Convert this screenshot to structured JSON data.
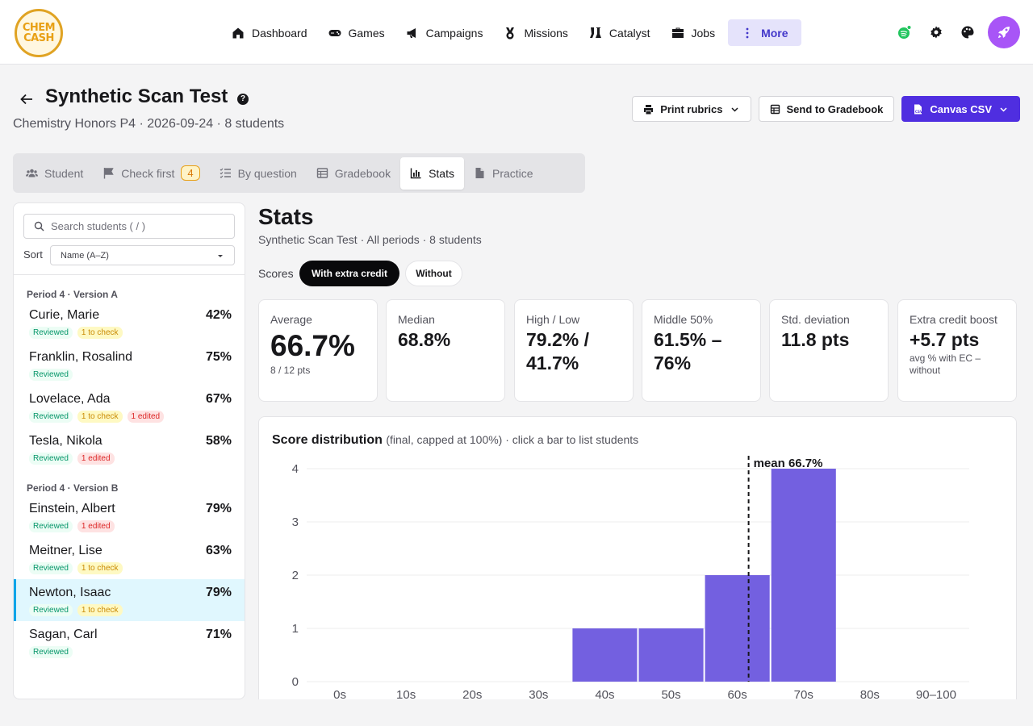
{
  "app": {
    "logo": [
      "CHEM",
      "CASH"
    ],
    "nav": [
      {
        "label": "Dashboard",
        "icon": "home-icon"
      },
      {
        "label": "Games",
        "icon": "gamepad-icon"
      },
      {
        "label": "Campaigns",
        "icon": "megaphone-icon"
      },
      {
        "label": "Missions",
        "icon": "medal-icon"
      },
      {
        "label": "Catalyst",
        "icon": "flask-icon"
      },
      {
        "label": "Jobs",
        "icon": "briefcase-icon"
      },
      {
        "label": "More",
        "icon": "dots-vertical-icon"
      }
    ],
    "top_icons": [
      "spotify-icon",
      "gear-icon",
      "palette-icon",
      "rocket-icon"
    ],
    "accent": "#4f2ee0",
    "rocket_color": "#a855f7"
  },
  "header": {
    "title": "Synthetic Scan Test",
    "subtitle": "Chemistry Honors P4 · 2026-09-24 · 8 students",
    "buttons": {
      "print": "Print rubrics",
      "gradebook": "Send to Gradebook",
      "canvas": "Canvas CSV"
    }
  },
  "tabs": [
    {
      "label": "Student",
      "icon": "users-icon"
    },
    {
      "label": "Check first",
      "icon": "flag-icon",
      "badge": "4"
    },
    {
      "label": "By question",
      "icon": "list-check-icon"
    },
    {
      "label": "Gradebook",
      "icon": "table-icon"
    },
    {
      "label": "Stats",
      "icon": "bar-chart-icon",
      "active": true
    },
    {
      "label": "Practice",
      "icon": "file-icon"
    }
  ],
  "sidebar": {
    "search_placeholder": "Search students ( / )",
    "sort_label": "Sort",
    "sort_value": "Name (A–Z)",
    "groups": [
      {
        "label": "Period 4 · Version A",
        "students": [
          {
            "name": "Curie, Marie",
            "pct": "42%",
            "chips": [
              [
                "Reviewed",
                "rev"
              ],
              [
                "1 to check",
                "chk"
              ]
            ]
          },
          {
            "name": "Franklin, Rosalind",
            "pct": "75%",
            "chips": [
              [
                "Reviewed",
                "rev"
              ]
            ]
          },
          {
            "name": "Lovelace, Ada",
            "pct": "67%",
            "chips": [
              [
                "Reviewed",
                "rev"
              ],
              [
                "1 to check",
                "chk"
              ],
              [
                "1 edited",
                "edit"
              ]
            ]
          },
          {
            "name": "Tesla, Nikola",
            "pct": "58%",
            "chips": [
              [
                "Reviewed",
                "rev"
              ],
              [
                "1 edited",
                "edit"
              ]
            ]
          }
        ]
      },
      {
        "label": "Period 4 · Version B",
        "students": [
          {
            "name": "Einstein, Albert",
            "pct": "79%",
            "chips": [
              [
                "Reviewed",
                "rev"
              ],
              [
                "1 edited",
                "edit"
              ]
            ]
          },
          {
            "name": "Meitner, Lise",
            "pct": "63%",
            "chips": [
              [
                "Reviewed",
                "rev"
              ],
              [
                "1 to check",
                "chk"
              ]
            ]
          },
          {
            "name": "Newton, Isaac",
            "pct": "79%",
            "chips": [
              [
                "Reviewed",
                "rev"
              ],
              [
                "1 to check",
                "chk"
              ]
            ],
            "selected": true
          },
          {
            "name": "Sagan, Carl",
            "pct": "71%",
            "chips": [
              [
                "Reviewed",
                "rev"
              ]
            ]
          }
        ]
      }
    ]
  },
  "stats": {
    "title": "Stats",
    "subtitle": "Synthetic Scan Test · All periods · 8 students",
    "scores_label": "Scores",
    "toggle_on": "With extra credit",
    "toggle_off": "Without",
    "cards": [
      {
        "label": "Average",
        "value": "66.7%",
        "note": "8 / 12 pts",
        "big": true
      },
      {
        "label": "Median",
        "value": "68.8%"
      },
      {
        "label": "High / Low",
        "value": "79.2% / 41.7%"
      },
      {
        "label": "Middle 50%",
        "value": "61.5% – 76%"
      },
      {
        "label": "Std. deviation",
        "value": "11.8 pts"
      },
      {
        "label": "Extra credit boost",
        "value": "+5.7 pts",
        "note": "avg % with EC – without"
      }
    ]
  },
  "chart_data": {
    "type": "bar",
    "title": "Score distribution",
    "subtitle": "(final, capped at 100%) · click a bar to list students",
    "categories": [
      "0s",
      "10s",
      "20s",
      "30s",
      "40s",
      "50s",
      "60s",
      "70s",
      "80s",
      "90–100"
    ],
    "values": [
      0,
      0,
      0,
      0,
      1,
      1,
      2,
      4,
      0,
      0
    ],
    "ylim": [
      0,
      4
    ],
    "yticks": [
      0,
      1,
      2,
      3,
      4
    ],
    "mean_value": 66.7,
    "mean_label": "mean 66.7%",
    "bar_color": "#7360e0",
    "grid": true
  }
}
